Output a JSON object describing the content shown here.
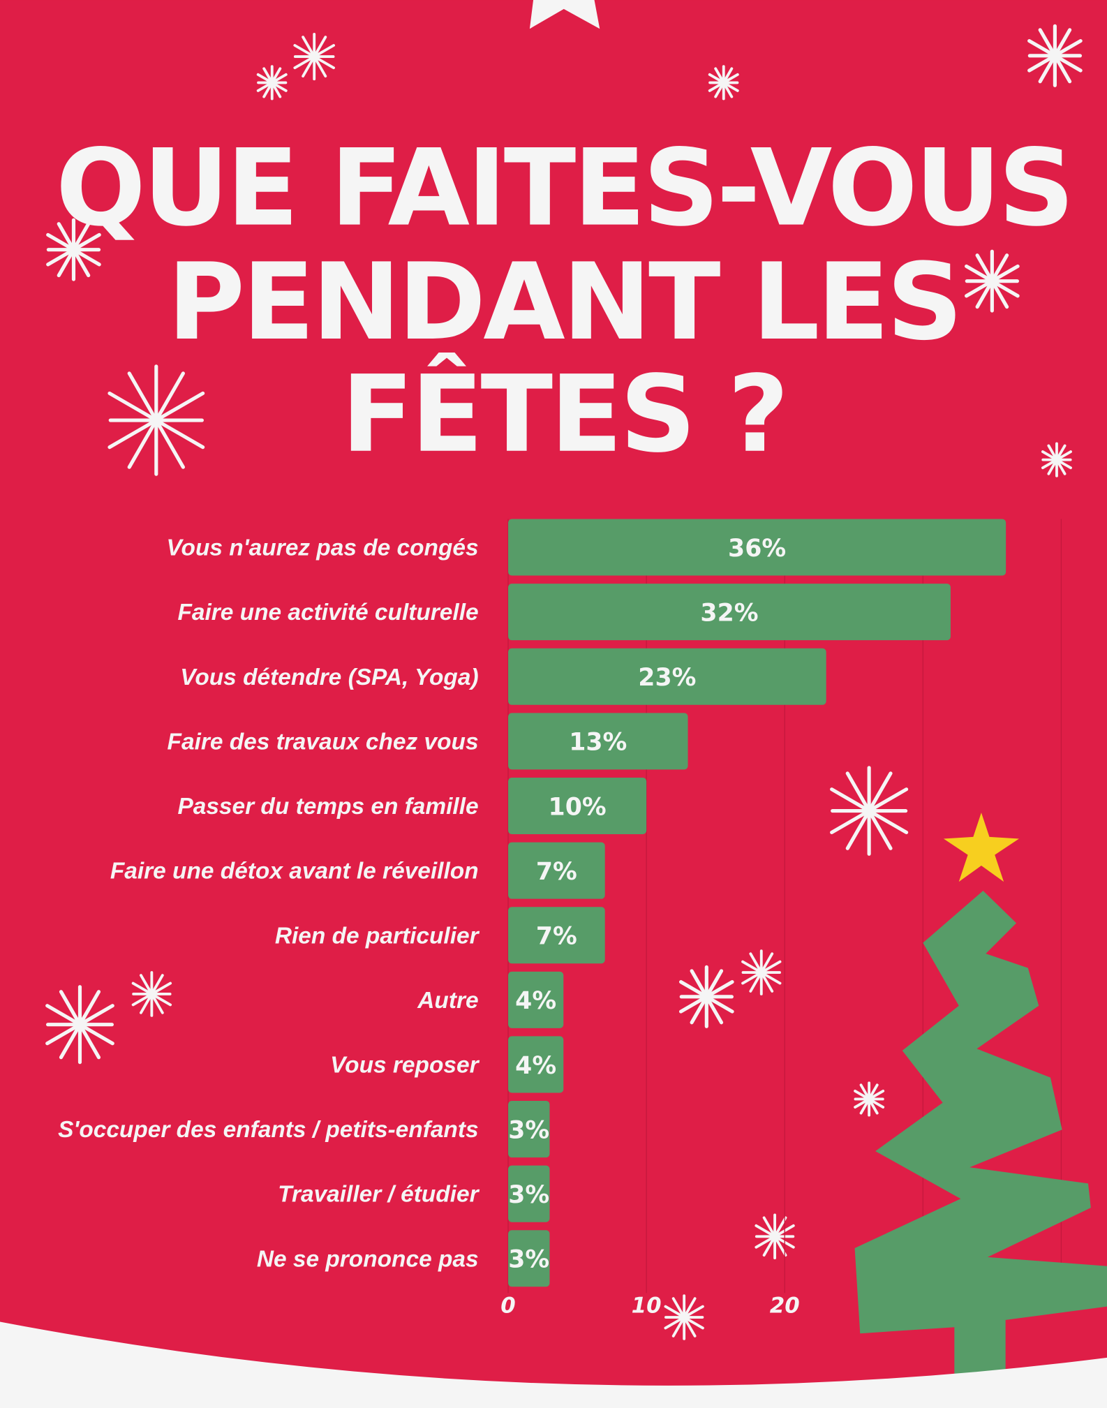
{
  "title_lines": [
    "QUE FAITES-VOUS",
    "PENDANT LES",
    "FÊTES ?"
  ],
  "colors": {
    "background": "#df1e47",
    "bar": "#579c68",
    "text": "#f5f5f5",
    "star": "#f7cf1f",
    "snow": "#f5f5f5"
  },
  "chart_data": {
    "type": "bar",
    "orientation": "horizontal",
    "title": "QUE FAITES-VOUS PENDANT LES FÊTES ?",
    "categories": [
      "Vous n'aurez pas de congés",
      "Faire une activité culturelle",
      "Vous détendre (SPA, Yoga)",
      "Faire des travaux chez vous",
      "Passer du temps en famille",
      "Faire une détox avant le réveillon",
      "Rien de particulier",
      "Autre",
      "Vous reposer",
      "S'occuper des enfants / petits-enfants",
      "Travailler / étudier",
      "Ne se prononce pas"
    ],
    "values": [
      36,
      32,
      23,
      13,
      10,
      7,
      7,
      4,
      4,
      3,
      3,
      3
    ],
    "value_labels": [
      "36%",
      "32%",
      "23%",
      "13%",
      "10%",
      "7%",
      "7%",
      "4%",
      "4%",
      "3%",
      "3%",
      "3%"
    ],
    "xlim": [
      0,
      40
    ],
    "xticks": [
      "0",
      "10",
      "20"
    ],
    "grid": true,
    "xlabel": "",
    "ylabel": ""
  }
}
